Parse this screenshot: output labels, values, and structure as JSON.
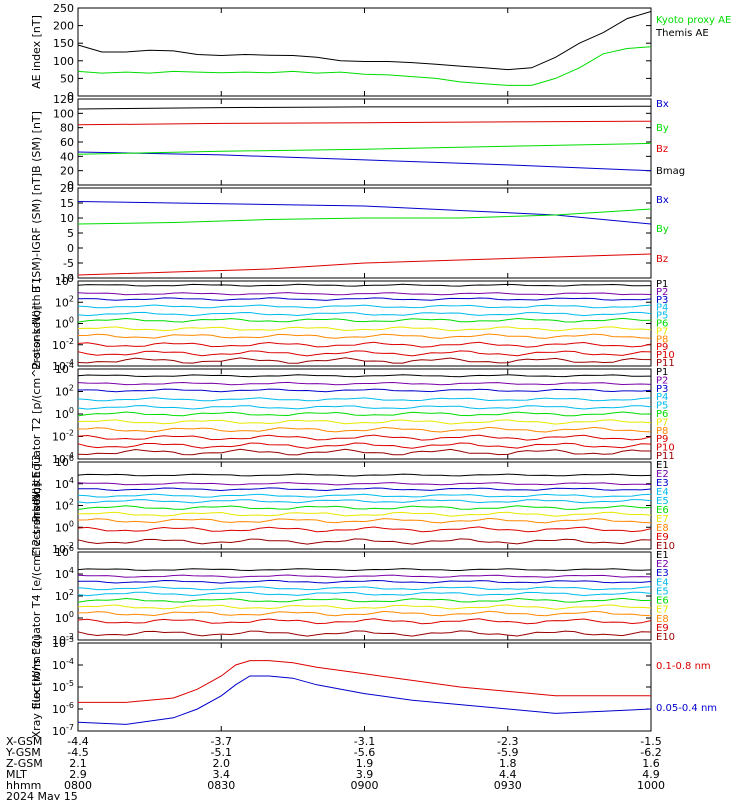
{
  "footer": {
    "labels": [
      "X-GSM",
      "Y-GSM",
      "Z-GSM",
      "MLT",
      "hhmm",
      "2024 May 15"
    ],
    "columns": [
      {
        "x": "-4.4",
        "y": "-4.5",
        "z": "2.1",
        "mlt": "2.9",
        "hhmm": "0800"
      },
      {
        "x": "-3.7",
        "y": "-5.1",
        "z": "2.0",
        "mlt": "3.4",
        "hhmm": "0830"
      },
      {
        "x": "-3.1",
        "y": "-5.6",
        "z": "1.9",
        "mlt": "3.9",
        "hhmm": "0900"
      },
      {
        "x": "-2.3",
        "y": "-5.9",
        "z": "1.8",
        "mlt": "4.4",
        "hhmm": "0930"
      },
      {
        "x": "-1.5",
        "y": "-6.2",
        "z": "1.6",
        "mlt": "4.9",
        "hhmm": "1000"
      }
    ]
  },
  "colors": {
    "black": "#000000",
    "green": "#00dd00",
    "red": "#dd0000",
    "blue": "#0000cc",
    "purple": "#7a00a8",
    "cyan": "#00bbee",
    "orange": "#ff8800",
    "yellow": "#e8e800",
    "darkred": "#990000"
  },
  "chart_data": [
    {
      "type": "line",
      "ylabel": "AE index [nT]",
      "yscale": "linear",
      "ylim": [
        0,
        250
      ],
      "yticks": [
        "0",
        "50",
        "100",
        "150",
        "200",
        "250"
      ],
      "xlim": [
        0,
        120
      ],
      "series": [
        {
          "name": "Kyoto proxy AE",
          "color": "#00dd00",
          "x": [
            0,
            5,
            10,
            15,
            20,
            25,
            30,
            35,
            40,
            45,
            50,
            55,
            60,
            65,
            70,
            75,
            80,
            85,
            90,
            95,
            100,
            105,
            110,
            115,
            120
          ],
          "y": [
            70,
            65,
            68,
            65,
            70,
            68,
            66,
            68,
            66,
            70,
            65,
            68,
            62,
            60,
            55,
            50,
            40,
            35,
            30,
            30,
            50,
            80,
            120,
            135,
            140
          ]
        },
        {
          "name": "Themis AE",
          "color": "#000000",
          "x": [
            0,
            5,
            10,
            15,
            20,
            25,
            30,
            35,
            40,
            45,
            50,
            55,
            60,
            65,
            70,
            75,
            80,
            85,
            90,
            95,
            100,
            105,
            110,
            115,
            120
          ],
          "y": [
            145,
            125,
            125,
            130,
            128,
            118,
            115,
            118,
            116,
            115,
            110,
            100,
            98,
            98,
            95,
            90,
            85,
            80,
            75,
            80,
            110,
            150,
            180,
            220,
            240
          ]
        }
      ]
    },
    {
      "type": "line",
      "ylabel": "B (SM) [nT]",
      "yscale": "linear",
      "ylim": [
        0,
        120
      ],
      "yticks": [
        "0",
        "20",
        "40",
        "60",
        "80",
        "100",
        "120"
      ],
      "xlim": [
        0,
        120
      ],
      "series": [
        {
          "name": "Bx",
          "color": "#0000cc",
          "x": [
            0,
            30,
            60,
            90,
            120
          ],
          "y": [
            46,
            42,
            35,
            28,
            20
          ]
        },
        {
          "name": "By",
          "color": "#00dd00",
          "x": [
            0,
            30,
            60,
            90,
            120
          ],
          "y": [
            43,
            47,
            50,
            54,
            58
          ]
        },
        {
          "name": "Bz",
          "color": "#dd0000",
          "x": [
            0,
            30,
            60,
            90,
            120
          ],
          "y": [
            84,
            86,
            87,
            88,
            89
          ]
        },
        {
          "name": "Bmag",
          "color": "#000000",
          "x": [
            0,
            30,
            60,
            90,
            120
          ],
          "y": [
            106,
            108,
            109,
            109,
            110
          ]
        }
      ]
    },
    {
      "type": "line",
      "ylabel": "B (SM)-IGRF (SM) [nT]",
      "yscale": "linear",
      "ylim": [
        -10,
        20
      ],
      "yticks": [
        "-10",
        "-5",
        "0",
        "5",
        "10",
        "15",
        "20"
      ],
      "xlim": [
        0,
        120
      ],
      "series": [
        {
          "name": "Bx",
          "color": "#0000cc",
          "x": [
            0,
            20,
            40,
            60,
            80,
            100,
            120
          ],
          "y": [
            15.5,
            15,
            14.5,
            14,
            12.5,
            11,
            8
          ]
        },
        {
          "name": "By",
          "color": "#00dd00",
          "x": [
            0,
            20,
            40,
            60,
            80,
            100,
            120
          ],
          "y": [
            8,
            8.5,
            9.5,
            10,
            10,
            11,
            13
          ]
        },
        {
          "name": "Bz",
          "color": "#dd0000",
          "x": [
            0,
            20,
            40,
            60,
            80,
            100,
            120
          ],
          "y": [
            -9,
            -8,
            -7,
            -5,
            -4,
            -3,
            -2
          ]
        }
      ]
    },
    {
      "type": "line",
      "ylabel": "Protons North T1",
      "yscale": "log",
      "ylim": [
        -4,
        4
      ],
      "yticks": [
        "10-4",
        "10-2",
        "100",
        "102",
        "104"
      ],
      "xlim": [
        0,
        120
      ],
      "series": [
        {
          "name": "P1",
          "color": "#000000",
          "values": [
            3.6
          ]
        },
        {
          "name": "P2",
          "color": "#7a00a8",
          "values": [
            2.8
          ]
        },
        {
          "name": "P3",
          "color": "#0000cc",
          "values": [
            2.3
          ]
        },
        {
          "name": "P4",
          "color": "#00bbee",
          "values": [
            1.6
          ]
        },
        {
          "name": "P5",
          "color": "#00bbee",
          "values": [
            0.9
          ]
        },
        {
          "name": "P6",
          "color": "#00dd00",
          "values": [
            0.3
          ]
        },
        {
          "name": "P7",
          "color": "#e8e800",
          "values": [
            -0.5
          ]
        },
        {
          "name": "P8",
          "color": "#ff8800",
          "values": [
            -1.2
          ]
        },
        {
          "name": "P9",
          "color": "#dd0000",
          "values": [
            -2.0
          ]
        },
        {
          "name": "P10",
          "color": "#dd0000",
          "values": [
            -2.8
          ]
        },
        {
          "name": "P11",
          "color": "#990000",
          "values": [
            -3.5
          ]
        }
      ]
    },
    {
      "type": "line",
      "ylabel": "Protons Equator T2 [p/(cm^2-s-sr-keV)]",
      "yscale": "log",
      "ylim": [
        -4,
        4
      ],
      "yticks": [
        "10-4",
        "10-2",
        "100",
        "102",
        "104"
      ],
      "xlim": [
        0,
        120
      ],
      "series": [
        {
          "name": "P1",
          "color": "#000000",
          "values": [
            3.4
          ]
        },
        {
          "name": "P2",
          "color": "#7a00a8",
          "values": [
            2.7
          ]
        },
        {
          "name": "P3",
          "color": "#0000cc",
          "values": [
            2.1
          ]
        },
        {
          "name": "P4",
          "color": "#00bbee",
          "values": [
            1.3
          ]
        },
        {
          "name": "P5",
          "color": "#00bbee",
          "values": [
            0.6
          ]
        },
        {
          "name": "P6",
          "color": "#00dd00",
          "values": [
            0.0
          ]
        },
        {
          "name": "P7",
          "color": "#e8e800",
          "values": [
            -0.7
          ]
        },
        {
          "name": "P8",
          "color": "#ff8800",
          "values": [
            -1.4
          ]
        },
        {
          "name": "P9",
          "color": "#dd0000",
          "values": [
            -2.1
          ]
        },
        {
          "name": "P10",
          "color": "#dd0000",
          "values": [
            -2.8
          ]
        },
        {
          "name": "P11",
          "color": "#990000",
          "values": [
            -3.4
          ]
        }
      ]
    },
    {
      "type": "line",
      "ylabel": "Electrons North T3",
      "yscale": "log",
      "ylim": [
        -2,
        6
      ],
      "yticks": [
        "10-2",
        "100",
        "102",
        "104",
        "106"
      ],
      "xlim": [
        0,
        120
      ],
      "series": [
        {
          "name": "E1",
          "color": "#000000",
          "values": [
            4.8
          ]
        },
        {
          "name": "E2",
          "color": "#7a00a8",
          "values": [
            4.0
          ]
        },
        {
          "name": "E3",
          "color": "#0000cc",
          "values": [
            3.5
          ]
        },
        {
          "name": "E4",
          "color": "#00bbee",
          "values": [
            2.9
          ]
        },
        {
          "name": "E5",
          "color": "#00bbee",
          "values": [
            2.4
          ]
        },
        {
          "name": "E6",
          "color": "#00dd00",
          "values": [
            1.8
          ]
        },
        {
          "name": "E7",
          "color": "#e8e800",
          "values": [
            1.2
          ]
        },
        {
          "name": "E8",
          "color": "#ff8800",
          "values": [
            0.6
          ]
        },
        {
          "name": "E9",
          "color": "#dd0000",
          "values": [
            -0.2
          ]
        },
        {
          "name": "E10",
          "color": "#990000",
          "values": [
            -1.3
          ]
        }
      ]
    },
    {
      "type": "line",
      "ylabel": "Electrons Equator T4 [e/(cm^2-s-sr-keV)]",
      "yscale": "log",
      "ylim": [
        -2,
        6
      ],
      "yticks": [
        "10-2",
        "100",
        "102",
        "104",
        "106"
      ],
      "xlim": [
        0,
        120
      ],
      "series": [
        {
          "name": "E1",
          "color": "#000000",
          "values": [
            4.4
          ]
        },
        {
          "name": "E2",
          "color": "#7a00a8",
          "values": [
            3.8
          ]
        },
        {
          "name": "E3",
          "color": "#0000cc",
          "values": [
            3.3
          ]
        },
        {
          "name": "E4",
          "color": "#00bbee",
          "values": [
            2.7
          ]
        },
        {
          "name": "E5",
          "color": "#00bbee",
          "values": [
            2.2
          ]
        },
        {
          "name": "E6",
          "color": "#00dd00",
          "values": [
            1.6
          ]
        },
        {
          "name": "E7",
          "color": "#e8e800",
          "values": [
            1.0
          ]
        },
        {
          "name": "E8",
          "color": "#ff8800",
          "values": [
            0.4
          ]
        },
        {
          "name": "E9",
          "color": "#dd0000",
          "values": [
            -0.3
          ]
        },
        {
          "name": "E10",
          "color": "#990000",
          "values": [
            -1.4
          ]
        }
      ]
    },
    {
      "type": "line",
      "ylabel": "Xray flux [W/m^2]",
      "yscale": "log",
      "ylim": [
        -7,
        -3
      ],
      "yticks": [
        "10-7",
        "10-6",
        "10-5",
        "10-4",
        "10-3"
      ],
      "xlim": [
        0,
        120
      ],
      "series": [
        {
          "name": "0.1-0.8 nm",
          "color": "#dd0000",
          "x": [
            0,
            10,
            20,
            25,
            30,
            33,
            36,
            40,
            45,
            50,
            60,
            70,
            80,
            90,
            100,
            110,
            120
          ],
          "y": [
            -5.7,
            -5.7,
            -5.5,
            -5.1,
            -4.5,
            -4.0,
            -3.8,
            -3.8,
            -3.9,
            -4.1,
            -4.4,
            -4.7,
            -5.0,
            -5.2,
            -5.4,
            -5.4,
            -5.4
          ]
        },
        {
          "name": "0.05-0.4 nm",
          "color": "#0000cc",
          "x": [
            0,
            10,
            20,
            25,
            30,
            33,
            36,
            40,
            45,
            50,
            60,
            70,
            80,
            90,
            100,
            110,
            120
          ],
          "y": [
            -6.6,
            -6.7,
            -6.4,
            -6.0,
            -5.4,
            -4.9,
            -4.5,
            -4.5,
            -4.6,
            -4.9,
            -5.3,
            -5.6,
            -5.8,
            -6.0,
            -6.2,
            -6.1,
            -6.0
          ]
        }
      ]
    }
  ]
}
